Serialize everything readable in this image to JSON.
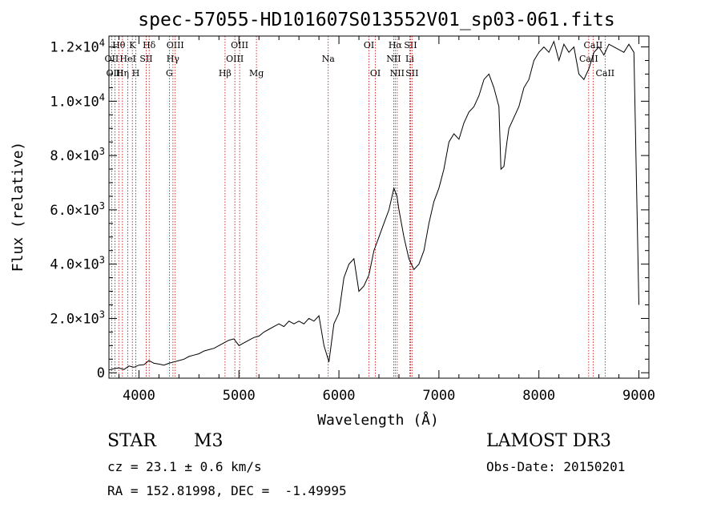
{
  "chart_data": {
    "type": "line",
    "title": "spec-57055-HD101607S013552V01_sp03-061.fits",
    "xlabel": "Wavelength (Å)",
    "ylabel": "Flux (relative)",
    "xlim": [
      3700,
      9100
    ],
    "ylim": [
      -200,
      12400
    ],
    "xticks": [
      {
        "value": 4000,
        "label": "4000"
      },
      {
        "value": 5000,
        "label": "5000"
      },
      {
        "value": 6000,
        "label": "6000"
      },
      {
        "value": 7000,
        "label": "7000"
      },
      {
        "value": 8000,
        "label": "8000"
      },
      {
        "value": 9000,
        "label": "9000"
      }
    ],
    "yticks": [
      {
        "value": 0,
        "mant": "0",
        "exp": ""
      },
      {
        "value": 2000,
        "mant": "2.0×10",
        "exp": "3"
      },
      {
        "value": 4000,
        "mant": "4.0×10",
        "exp": "3"
      },
      {
        "value": 6000,
        "mant": "6.0×10",
        "exp": "3"
      },
      {
        "value": 8000,
        "mant": "8.0×10",
        "exp": "3"
      },
      {
        "value": 10000,
        "mant": "1.0×10",
        "exp": "4"
      },
      {
        "value": 12000,
        "mant": "1.2×10",
        "exp": "4"
      }
    ],
    "series": [
      {
        "name": "spectrum",
        "x": [
          3700,
          3750,
          3800,
          3850,
          3900,
          3950,
          4000,
          4050,
          4100,
          4150,
          4200,
          4250,
          4300,
          4350,
          4400,
          4450,
          4500,
          4550,
          4600,
          4650,
          4700,
          4750,
          4800,
          4850,
          4900,
          4950,
          5000,
          5050,
          5100,
          5150,
          5200,
          5250,
          5300,
          5350,
          5400,
          5450,
          5500,
          5550,
          5600,
          5650,
          5700,
          5750,
          5800,
          5850,
          5900,
          5950,
          6000,
          6050,
          6100,
          6150,
          6200,
          6250,
          6300,
          6350,
          6400,
          6450,
          6500,
          6550,
          6580,
          6600,
          6650,
          6700,
          6750,
          6800,
          6850,
          6900,
          6950,
          7000,
          7050,
          7100,
          7150,
          7200,
          7250,
          7300,
          7350,
          7400,
          7450,
          7500,
          7550,
          7600,
          7620,
          7650,
          7680,
          7700,
          7750,
          7800,
          7850,
          7900,
          7950,
          8000,
          8050,
          8100,
          8150,
          8200,
          8250,
          8300,
          8350,
          8400,
          8450,
          8500,
          8550,
          8600,
          8650,
          8700,
          8750,
          8800,
          8850,
          8900,
          8950,
          9000
        ],
        "y": [
          100,
          150,
          180,
          120,
          250,
          200,
          280,
          300,
          450,
          350,
          320,
          280,
          350,
          400,
          450,
          500,
          600,
          650,
          700,
          800,
          850,
          900,
          1000,
          1100,
          1200,
          1250,
          1000,
          1100,
          1200,
          1300,
          1350,
          1500,
          1600,
          1700,
          1800,
          1700,
          1900,
          1800,
          1900,
          1800,
          2000,
          1900,
          2100,
          1000,
          400,
          1800,
          2200,
          3500,
          4000,
          4200,
          3000,
          3200,
          3600,
          4500,
          5000,
          5500,
          6000,
          6800,
          6500,
          6000,
          5000,
          4200,
          3800,
          4000,
          4500,
          5500,
          6300,
          6800,
          7500,
          8500,
          8800,
          8600,
          9200,
          9600,
          9800,
          10200,
          10800,
          11000,
          10500,
          9800,
          7500,
          7600,
          8500,
          9000,
          9400,
          9800,
          10500,
          10800,
          11500,
          11800,
          12000,
          11800,
          12200,
          11500,
          12100,
          11800,
          12000,
          11000,
          10800,
          11200,
          11800,
          12000,
          11700,
          12100,
          12000,
          11900,
          11800,
          12100,
          11800,
          2500
        ]
      }
    ],
    "lines": [
      {
        "name": "Hθ",
        "wl": 3798,
        "row": 0
      },
      {
        "name": "K",
        "wl": 3934,
        "row": 0
      },
      {
        "name": "Hδ",
        "wl": 4102,
        "row": 0
      },
      {
        "name": "OIII",
        "wl": 4363,
        "row": 0
      },
      {
        "name": "OIII",
        "wl": 5007,
        "row": 0
      },
      {
        "name": "OI",
        "wl": 6300,
        "row": 0
      },
      {
        "name": "Hα",
        "wl": 6563,
        "row": 0
      },
      {
        "name": "SII",
        "wl": 6716,
        "row": 0
      },
      {
        "name": "CaII",
        "wl": 8542,
        "row": 0
      },
      {
        "name": "OII",
        "wl": 3727,
        "row": 1
      },
      {
        "name": "HeI",
        "wl": 3889,
        "row": 1
      },
      {
        "name": "SII",
        "wl": 4072,
        "row": 1
      },
      {
        "name": "Hγ",
        "wl": 4340,
        "row": 1
      },
      {
        "name": "OIII",
        "wl": 4959,
        "row": 1
      },
      {
        "name": "Na",
        "wl": 5893,
        "row": 1
      },
      {
        "name": "NII",
        "wl": 6548,
        "row": 1
      },
      {
        "name": "Li",
        "wl": 6708,
        "row": 1
      },
      {
        "name": "CaII",
        "wl": 8498,
        "row": 1
      },
      {
        "name": "OIII",
        "wl": 3760,
        "row": 2
      },
      {
        "name": "Hη",
        "wl": 3835,
        "row": 2
      },
      {
        "name": "H",
        "wl": 3969,
        "row": 2
      },
      {
        "name": "G",
        "wl": 4304,
        "row": 2
      },
      {
        "name": "Hβ",
        "wl": 4861,
        "row": 2
      },
      {
        "name": "Mg",
        "wl": 5175,
        "row": 2
      },
      {
        "name": "OI",
        "wl": 6364,
        "row": 2
      },
      {
        "name": "NII",
        "wl": 6583,
        "row": 2
      },
      {
        "name": "SII",
        "wl": 6731,
        "row": 2
      },
      {
        "name": "CaII",
        "wl": 8662,
        "row": 2
      }
    ],
    "colors": {
      "spectrum": "#000000",
      "lines": "#c00000",
      "axes": "#000000"
    }
  },
  "info": {
    "object_class": "STAR",
    "subclass": "M3",
    "survey": "LAMOST DR3",
    "cz": "cz = 23.1 ± 0.6 km/s",
    "obs_date": "Obs-Date: 20150201",
    "coords": "RA = 152.81998, DEC =  -1.49995"
  }
}
